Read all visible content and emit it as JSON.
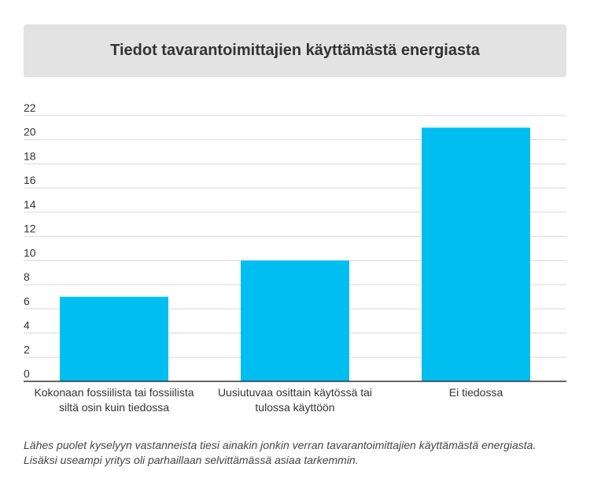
{
  "chart_data": {
    "type": "bar",
    "title": "Tiedot tavarantoimittajien käyttämästä energiasta",
    "categories": [
      [
        "Kokonaan fossiilista tai fossiilista",
        "siltä osin kuin tiedossa"
      ],
      [
        "Uusiutuvaa osittain käytössä tai",
        "tulossa käyttöön"
      ],
      [
        "Ei tiedossa"
      ]
    ],
    "values": [
      7,
      10,
      21
    ],
    "ylim": [
      0,
      22
    ],
    "yticks": [
      0,
      2,
      4,
      6,
      8,
      10,
      12,
      14,
      16,
      18,
      20,
      22
    ],
    "xlabel": "",
    "ylabel": "",
    "grid": true,
    "bar_color": "#00bef0"
  },
  "caption": {
    "line1": "Lähes puolet kyselyyn vastanneista tiesi ainakin jonkin verran tavarantoimittajien käyttämästä energiasta.",
    "line2": "Lisäksi useampi yritys oli parhaillaan selvittämässä asiaa tarkemmin."
  }
}
